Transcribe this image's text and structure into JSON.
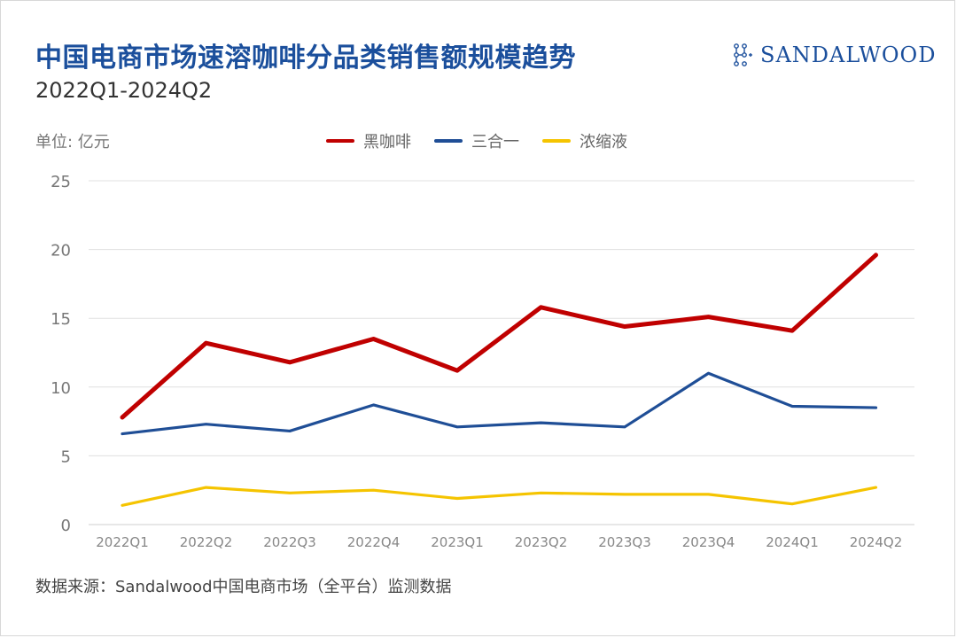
{
  "header": {
    "title": "中国电商市场速溶咖啡分品类销售额规模趋势",
    "subtitle": "2022Q1-2024Q2",
    "logo_text": "SANDALWOOD"
  },
  "unit_label": "单位: 亿元",
  "source": "数据来源：Sandalwood中国电商市场（全平台）监测数据",
  "colors": {
    "title": "#1b4f9c",
    "black_coffee": "#c00000",
    "three_in_one": "#1f4e96",
    "concentrate": "#f5c400",
    "grid": "#e0e0e0"
  },
  "chart_data": {
    "type": "line",
    "categories": [
      "2022Q1",
      "2022Q2",
      "2022Q3",
      "2022Q4",
      "2023Q1",
      "2023Q2",
      "2023Q3",
      "2023Q4",
      "2024Q1",
      "2024Q2"
    ],
    "ylim": [
      0,
      25
    ],
    "yticks": [
      0,
      5,
      10,
      15,
      20,
      25
    ],
    "grid": true,
    "legend_position": "top",
    "series": [
      {
        "name": "黑咖啡",
        "color": "#c00000",
        "values": [
          7.8,
          13.2,
          11.8,
          13.5,
          11.2,
          15.8,
          14.4,
          15.1,
          14.1,
          19.6
        ]
      },
      {
        "name": "三合一",
        "color": "#1f4e96",
        "values": [
          6.6,
          7.3,
          6.8,
          8.7,
          7.1,
          7.4,
          7.1,
          11.0,
          8.6,
          8.5
        ]
      },
      {
        "name": "浓缩液",
        "color": "#f5c400",
        "values": [
          1.4,
          2.7,
          2.3,
          2.5,
          1.9,
          2.3,
          2.2,
          2.2,
          1.5,
          2.7
        ]
      }
    ]
  }
}
